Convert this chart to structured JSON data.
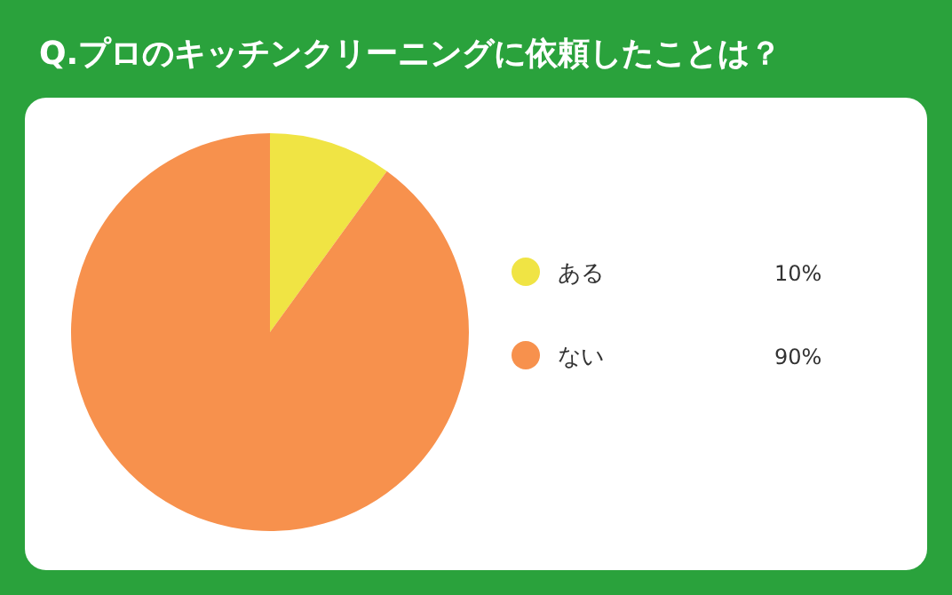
{
  "chart_data": {
    "type": "pie",
    "title": "Q.プロのキッチンクリーニングに依頼したことは？",
    "categories": [
      "ある",
      "ない"
    ],
    "values": [
      10,
      90
    ],
    "colors": [
      "#f0e444",
      "#f7914d"
    ],
    "value_labels": [
      "10%",
      "90%"
    ],
    "legend": "right"
  }
}
